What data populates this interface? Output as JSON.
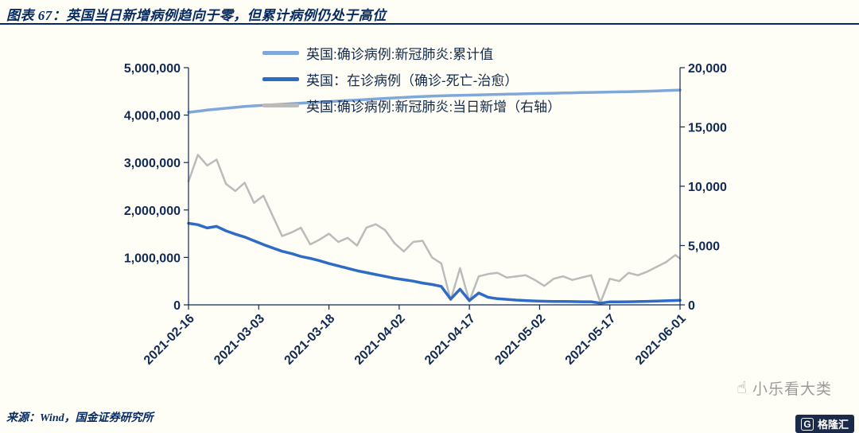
{
  "header": {
    "title": "图表 67：英国当日新增病例趋向于零，但累计病例仍处于高位"
  },
  "footer": {
    "source": "来源：Wind，国金证券研究所"
  },
  "watermark": {
    "text": "小乐看大类",
    "logo_letter": "G",
    "logo_text": "格隆汇"
  },
  "colors": {
    "background": "#FFFEF6",
    "title_navy": "#072B61",
    "axis_navy": "#112A54",
    "cumulative_blue": "#7FA7DA",
    "active_blue": "#2E6BC6",
    "daily_gray": "#BBBBBB",
    "watermark_gray": "#9B9B9B"
  },
  "chart_data": {
    "type": "line",
    "title": "图表 67：英国当日新增病例趋向于零，但累计病例仍处于高位",
    "grid": false,
    "legend_position": "top-center",
    "axis_color": "#112A54",
    "x_range": [
      "2021-02-16",
      "2021-06-01"
    ],
    "x_ticks": [
      "2021-02-16",
      "2021-03-03",
      "2021-03-18",
      "2021-04-02",
      "2021-04-17",
      "2021-05-02",
      "2021-05-17",
      "2021-06-01"
    ],
    "left_axis": {
      "min": 0,
      "max": 5000000,
      "tick_values": [
        0,
        1000000,
        2000000,
        3000000,
        4000000,
        5000000
      ],
      "tick_labels": [
        "0",
        "1,000,000",
        "2,000,000",
        "3,000,000",
        "4,000,000",
        "5,000,000"
      ]
    },
    "right_axis": {
      "min": 0,
      "max": 20000,
      "tick_values": [
        0,
        5000,
        10000,
        15000,
        20000
      ],
      "tick_labels": [
        "0",
        "5,000",
        "10,000",
        "15,000",
        "20,000"
      ],
      "note": "右轴"
    },
    "dates": [
      "2021-02-16",
      "2021-02-18",
      "2021-02-20",
      "2021-02-22",
      "2021-02-24",
      "2021-02-26",
      "2021-02-28",
      "2021-03-02",
      "2021-03-04",
      "2021-03-06",
      "2021-03-08",
      "2021-03-10",
      "2021-03-12",
      "2021-03-14",
      "2021-03-16",
      "2021-03-18",
      "2021-03-20",
      "2021-03-22",
      "2021-03-24",
      "2021-03-26",
      "2021-03-28",
      "2021-03-30",
      "2021-04-01",
      "2021-04-03",
      "2021-04-05",
      "2021-04-07",
      "2021-04-09",
      "2021-04-11",
      "2021-04-13",
      "2021-04-15",
      "2021-04-17",
      "2021-04-19",
      "2021-04-21",
      "2021-04-23",
      "2021-04-25",
      "2021-04-27",
      "2021-04-29",
      "2021-05-01",
      "2021-05-03",
      "2021-05-05",
      "2021-05-07",
      "2021-05-09",
      "2021-05-11",
      "2021-05-13",
      "2021-05-15",
      "2021-05-17",
      "2021-05-19",
      "2021-05-21",
      "2021-05-23",
      "2021-05-25",
      "2021-05-27",
      "2021-05-29",
      "2021-05-31",
      "2021-06-01"
    ],
    "draw_order": [
      2,
      0,
      1
    ],
    "series": [
      {
        "name": "英国:确诊病例:新冠肺炎:累计值",
        "axis": "left",
        "color": "#7FA7DA",
        "width": 3.5,
        "values": [
          4058000,
          4083000,
          4105000,
          4126000,
          4144000,
          4163000,
          4182000,
          4194000,
          4207000,
          4218000,
          4229000,
          4241000,
          4252000,
          4263000,
          4274000,
          4285000,
          4296000,
          4307000,
          4317000,
          4329000,
          4341000,
          4353000,
          4363000,
          4373000,
          4382000,
          4391000,
          4399000,
          4406000,
          4412000,
          4417000,
          4421000,
          4426000,
          4431000,
          4436000,
          4441000,
          4445000,
          4450000,
          4454000,
          4458000,
          4462000,
          4466000,
          4470000,
          4474000,
          4478000,
          4482000,
          4486000,
          4490000,
          4494000,
          4499000,
          4504000,
          4510000,
          4517000,
          4524000,
          4528000
        ]
      },
      {
        "name": "英国：在诊病例（确诊-死亡-治愈）",
        "axis": "left",
        "color": "#2E6BC6",
        "width": 3.5,
        "values": [
          1720000,
          1690000,
          1620000,
          1655000,
          1560000,
          1490000,
          1430000,
          1350000,
          1270000,
          1200000,
          1130000,
          1080000,
          1020000,
          980000,
          930000,
          870000,
          820000,
          770000,
          720000,
          680000,
          640000,
          600000,
          560000,
          530000,
          500000,
          460000,
          430000,
          390000,
          120000,
          330000,
          90000,
          250000,
          160000,
          130000,
          115000,
          100000,
          90000,
          82000,
          76000,
          72000,
          70000,
          68000,
          66000,
          65000,
          35000,
          63000,
          64000,
          66000,
          69000,
          73000,
          79000,
          85000,
          92000,
          95000
        ]
      },
      {
        "name": "英国:确诊病例:新冠肺炎:当日新增（右轴）",
        "axis": "right",
        "color": "#BBBBBB",
        "width": 2.5,
        "values": [
          10400,
          12650,
          11750,
          12250,
          10200,
          9600,
          10300,
          8600,
          9200,
          7500,
          5800,
          6100,
          6500,
          5100,
          5500,
          6000,
          5300,
          5650,
          5000,
          6500,
          6800,
          6300,
          5200,
          4500,
          5300,
          5400,
          4000,
          3500,
          400,
          3100,
          300,
          2400,
          2600,
          2700,
          2300,
          2400,
          2500,
          2100,
          1600,
          2200,
          2400,
          2100,
          2300,
          2500,
          200,
          2200,
          2000,
          2700,
          2500,
          2800,
          3200,
          3600,
          4200,
          3900
        ]
      }
    ]
  }
}
